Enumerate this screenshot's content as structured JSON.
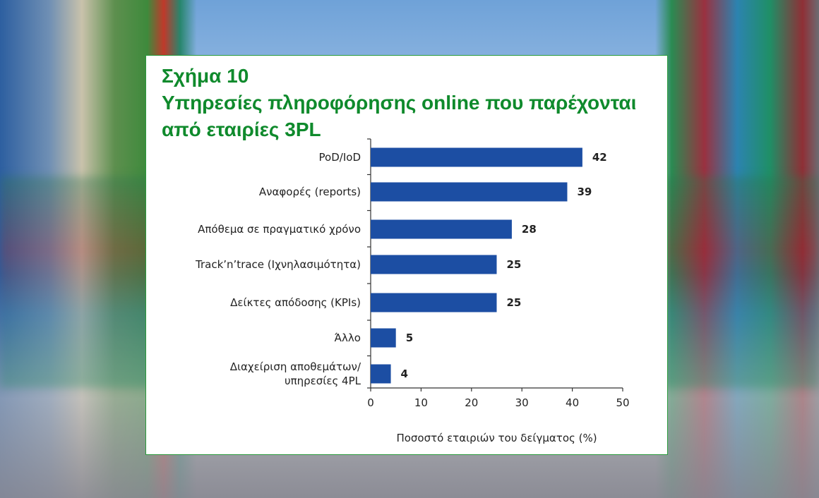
{
  "figure": {
    "number_title": "Σχήμα 10",
    "title_line1": "Υπηρεσίες πληροφόρησης online που παρέχονται",
    "title_line2": "από εταιρίες 3PL"
  },
  "chart_data": {
    "type": "bar",
    "orientation": "horizontal",
    "categories": [
      [
        "PoD/IoD"
      ],
      [
        "Αναφορές (reports)"
      ],
      [
        "Απόθεμα σε πραγματικό χρόνο"
      ],
      [
        "Track’n’trace (Ιχνηλασιμότητα)"
      ],
      [
        "Δείκτες απόδοσης (KPIs)"
      ],
      [
        "Άλλο"
      ],
      [
        "Διαχείριση αποθεμάτων/",
        "υπηρεσίες 4PL"
      ]
    ],
    "values": [
      42,
      39,
      28,
      25,
      25,
      5,
      4
    ],
    "xlabel": "Ποσοστό εταιριών του δείγματος (%)",
    "xlim": [
      0,
      50
    ],
    "xticks": [
      "0",
      "10",
      "20",
      "30",
      "40",
      "50"
    ],
    "bar_color": "#1c4ea3",
    "grid": false,
    "data_labels": true
  },
  "colors": {
    "title": "#0f8a2c",
    "panel_border": "#2a9a3c"
  }
}
